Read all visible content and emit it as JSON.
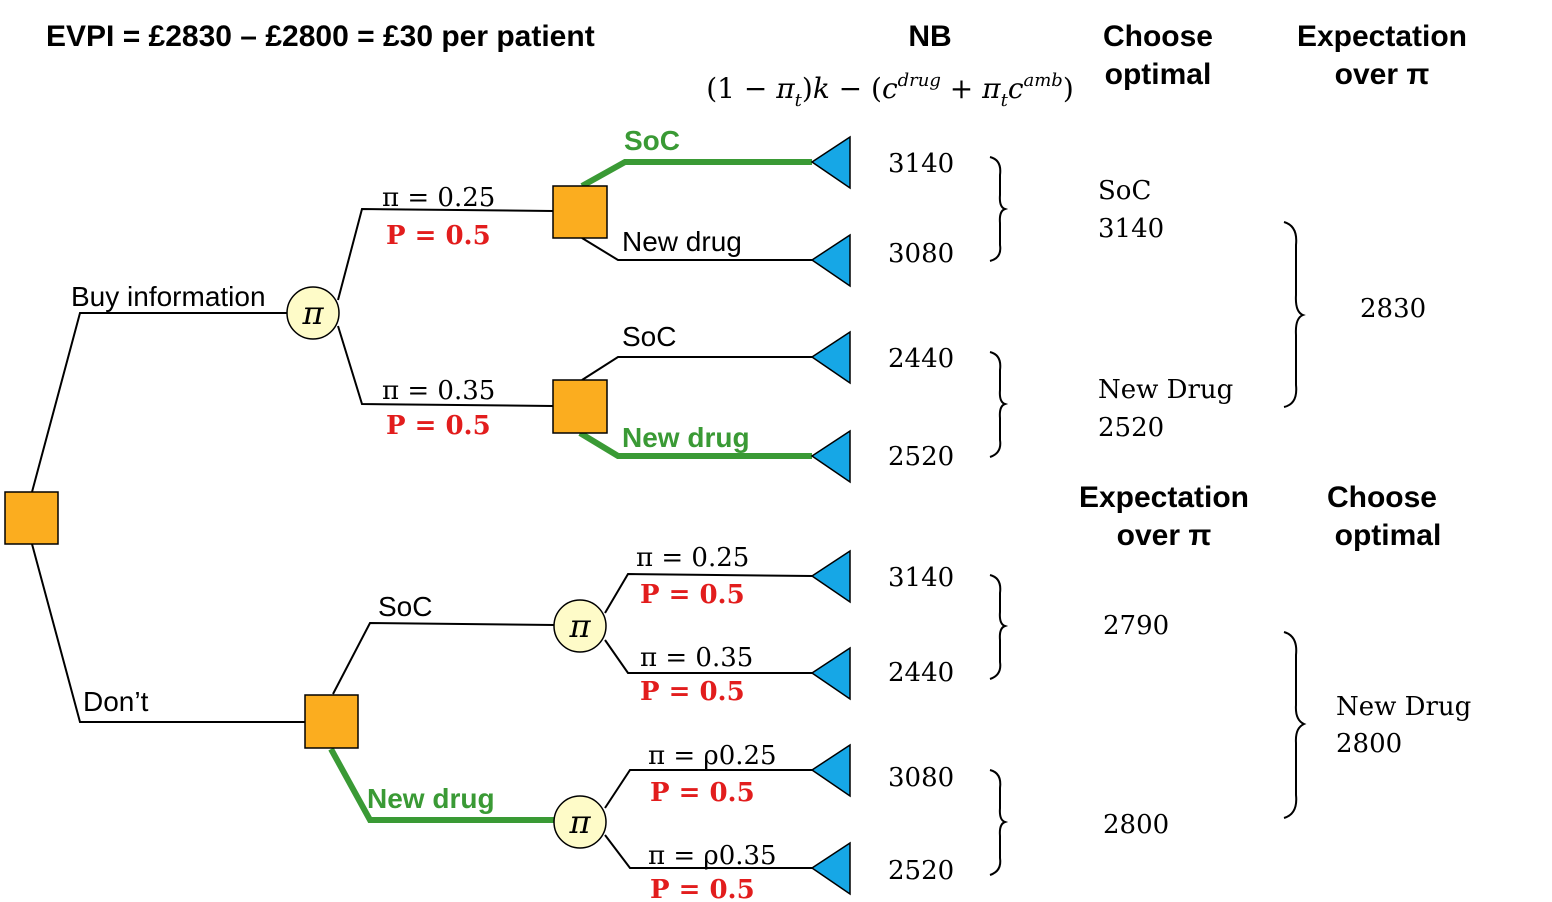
{
  "evpi": "EVPI = £2830 – £2800 = £30 per patient",
  "headers": {
    "nb": "NB",
    "nb_formula": "(1 − π_t)k − (c^drug + π_t c^amb)",
    "choose_top_1": "Choose",
    "choose_top_2": "optimal",
    "expect_top_1": "Expectation",
    "expect_top_2": "over π",
    "expect_bot_1": "Expectation",
    "expect_bot_2": "over π",
    "choose_bot_1": "Choose",
    "choose_bot_2": "optimal"
  },
  "branches": {
    "buy": "Buy information",
    "dont": "Don’t",
    "soc": "SoC",
    "new_drug": "New drug"
  },
  "pi_labels": {
    "p025": "π = 0.25",
    "p035": "π = 0.35",
    "rho025": "π = ρ0.25",
    "rho035": "π = ρ0.35",
    "prob": "P = 0.5"
  },
  "node_symbol": "π",
  "nb_values": {
    "buy_025_soc": "3140",
    "buy_025_new": "3080",
    "buy_035_soc": "2440",
    "buy_035_new": "2520",
    "dont_soc_025": "3140",
    "dont_soc_035": "2440",
    "dont_new_025": "3080",
    "dont_new_035": "2520"
  },
  "results": {
    "choose_025_name": "SoC",
    "choose_025_val": "3140",
    "choose_035_name": "New Drug",
    "choose_035_val": "2520",
    "expect_buy": "2830",
    "expect_soc": "2790",
    "expect_new": "2800",
    "choose_dont_name": "New Drug",
    "choose_dont_val": "2800"
  },
  "colors": {
    "decision_node": "#fbad1f",
    "chance_node": "#fefbc8",
    "terminal_node": "#16a7e6",
    "optimal_path": "#3a9a35",
    "probability": "#e21d1d"
  }
}
